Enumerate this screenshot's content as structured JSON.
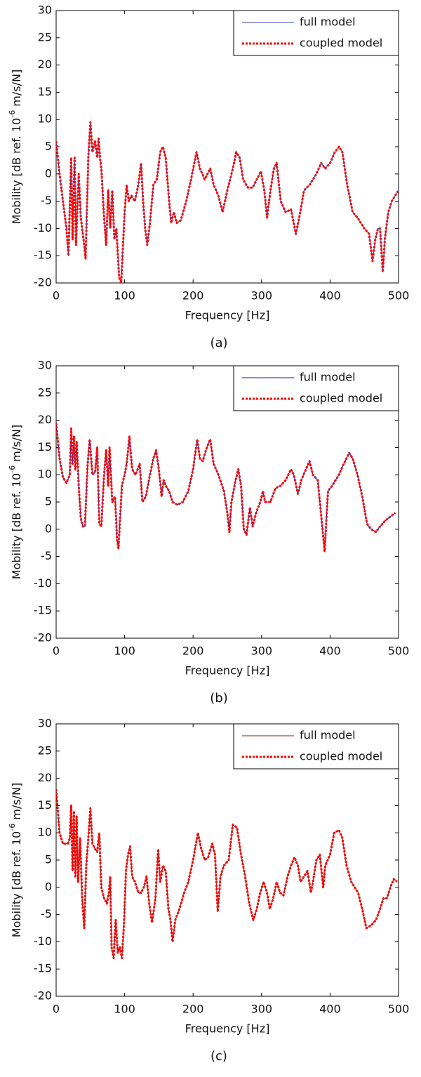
{
  "chart_data": [
    {
      "type": "line",
      "caption": "(a)",
      "xlabel": "Frequency [Hz]",
      "ylabel_parts": [
        "Mobility [dB ref. 10",
        "-6",
        " m/s/N]"
      ],
      "xlim": [
        0,
        500
      ],
      "ylim": [
        -20,
        30
      ],
      "xticks": [
        0,
        100,
        200,
        300,
        400,
        500
      ],
      "yticks": [
        -20,
        -15,
        -10,
        -5,
        0,
        5,
        10,
        15,
        20,
        25,
        30
      ],
      "legend": "upper right",
      "x": [
        0,
        5,
        10,
        15,
        18,
        22,
        24,
        27,
        29,
        33,
        36,
        40,
        43,
        47,
        50,
        53,
        57,
        60,
        62,
        64,
        66,
        70,
        73,
        76,
        79,
        82,
        85,
        88,
        92,
        95,
        100,
        103,
        106,
        110,
        115,
        120,
        124,
        127,
        130,
        133,
        137,
        142,
        147,
        152,
        156,
        160,
        165,
        168,
        172,
        176,
        182,
        190,
        197,
        205,
        210,
        217,
        225,
        230,
        237,
        243,
        250,
        258,
        263,
        268,
        273,
        280,
        287,
        293,
        299,
        304,
        308,
        313,
        318,
        322,
        328,
        335,
        343,
        350,
        355,
        362,
        370,
        380,
        387,
        393,
        400,
        407,
        413,
        418,
        425,
        433,
        440,
        450,
        457,
        462,
        466,
        470,
        473,
        477,
        480,
        485,
        490,
        495,
        500
      ],
      "series": [
        {
          "name": "full model",
          "color": "#3040b0",
          "style": "solid",
          "values": [
            6,
            0,
            -5,
            -10,
            -15,
            3,
            -12,
            3,
            -13,
            0,
            -8,
            -12,
            -15.5,
            3,
            9.5,
            4,
            6,
            3,
            6.5,
            3,
            1,
            -8,
            -13,
            -3,
            -10,
            -3,
            -12,
            -10,
            -19,
            -20,
            -7,
            -2,
            -5,
            -4,
            -5,
            -2,
            2,
            -5,
            -10,
            -13,
            -9,
            -2,
            -1,
            4,
            5,
            3,
            -5,
            -9,
            -7,
            -9,
            -8.5,
            -5,
            -1,
            4,
            1,
            -1,
            1,
            -2,
            -4,
            -7,
            -3,
            1,
            4,
            3,
            -1,
            -2.5,
            -2.5,
            -1,
            0.5,
            -3,
            -8,
            -3,
            1,
            2,
            -5,
            -7,
            -6.5,
            -11,
            -8,
            -3,
            -2,
            0,
            2,
            1,
            2,
            4,
            5,
            4,
            -2,
            -7,
            -8,
            -10,
            -11,
            -16,
            -12,
            -10,
            -10,
            -18,
            -12,
            -7,
            -5,
            -4,
            -3
          ]
        },
        {
          "name": "coupled model",
          "color": "#ff0000",
          "style": "dotted",
          "values": [
            6,
            0,
            -5,
            -10,
            -15,
            3,
            -12,
            3,
            -13,
            0,
            -8,
            -12,
            -15.5,
            3,
            9.5,
            4,
            6,
            3,
            6.5,
            3,
            1,
            -8,
            -13,
            -3,
            -10,
            -3,
            -12,
            -10,
            -19,
            -20,
            -7,
            -2,
            -5,
            -4,
            -5,
            -2,
            2,
            -5,
            -10,
            -13,
            -9,
            -2,
            -1,
            4,
            5,
            3,
            -5,
            -9,
            -7,
            -9,
            -8.5,
            -5,
            -1,
            4,
            1,
            -1,
            1,
            -2,
            -4,
            -7,
            -3,
            1,
            4,
            3,
            -1,
            -2.5,
            -2.5,
            -1,
            0.5,
            -3,
            -8,
            -3,
            1,
            2,
            -5,
            -7,
            -6.5,
            -11,
            -8,
            -3,
            -2,
            0,
            2,
            1,
            2,
            4,
            5,
            4,
            -2,
            -7,
            -8,
            -10,
            -11,
            -16,
            -12,
            -10,
            -10,
            -18,
            -12,
            -7,
            -5,
            -4,
            -3
          ]
        }
      ]
    },
    {
      "type": "line",
      "caption": "(b)",
      "xlabel": "Frequency [Hz]",
      "ylabel_parts": [
        "Mobility [dB ref. 10",
        "-6",
        " m/s/N]"
      ],
      "xlim": [
        0,
        500
      ],
      "ylim": [
        -20,
        30
      ],
      "xticks": [
        0,
        100,
        200,
        300,
        400,
        500
      ],
      "yticks": [
        -20,
        -15,
        -10,
        -5,
        0,
        5,
        10,
        15,
        20,
        25,
        30
      ],
      "legend": "upper right",
      "x": [
        0,
        5,
        10,
        15,
        20,
        22,
        24,
        26,
        28,
        30,
        33,
        36,
        39,
        42,
        46,
        49,
        53,
        57,
        60,
        63,
        66,
        70,
        73,
        76,
        78,
        82,
        86,
        89,
        91,
        96,
        100,
        103,
        107,
        111,
        116,
        122,
        126,
        131,
        137,
        142,
        146,
        150,
        154,
        157,
        160,
        165,
        170,
        177,
        185,
        193,
        200,
        206,
        210,
        214,
        220,
        225,
        230,
        237,
        245,
        250,
        253,
        256,
        262,
        266,
        270,
        274,
        278,
        283,
        287,
        292,
        298,
        302,
        305,
        313,
        320,
        328,
        335,
        343,
        347,
        353,
        358,
        363,
        370,
        375,
        382,
        389,
        392,
        397,
        403,
        408,
        413,
        420,
        428,
        433,
        440,
        447,
        454,
        460,
        467,
        473,
        480,
        490,
        495
      ],
      "series": [
        {
          "name": "full model",
          "color": "#1a1aa0",
          "style": "solid",
          "values": [
            19.5,
            13,
            9.5,
            8.5,
            10,
            18.5,
            12,
            17,
            11,
            16,
            8,
            2,
            0.5,
            0.5,
            12,
            16.5,
            10,
            10.5,
            15,
            1,
            0.5,
            10,
            14.5,
            8,
            15,
            5,
            6,
            -2,
            -3.5,
            8,
            10,
            12,
            17,
            11,
            10,
            12,
            5,
            6,
            10,
            13,
            14.5,
            11,
            6,
            9,
            8,
            7,
            5,
            4.5,
            5,
            7,
            11,
            16.5,
            13,
            12.5,
            15,
            16.5,
            12,
            10,
            7,
            3,
            -0.5,
            5,
            9,
            11,
            8,
            0,
            -1,
            4,
            0.5,
            3,
            5,
            7,
            5,
            5,
            7.5,
            8,
            9,
            11,
            10,
            6.5,
            9,
            10.5,
            12.5,
            10,
            9,
            0,
            -4,
            7,
            8,
            9,
            10,
            12,
            14,
            13,
            10,
            6,
            1,
            0,
            -0.5,
            0.5,
            1.5,
            2.5,
            3
          ]
        },
        {
          "name": "coupled model",
          "color": "#ff0000",
          "style": "dotted",
          "values": [
            19.5,
            13,
            9.5,
            8.5,
            10,
            18.5,
            12,
            17,
            11,
            16,
            8,
            2,
            0.5,
            0.5,
            12,
            16.5,
            10,
            10.5,
            15,
            1,
            0.5,
            10,
            14.5,
            8,
            15,
            5,
            6,
            -2,
            -3.5,
            8,
            10,
            12,
            17,
            11,
            10,
            12,
            5,
            6,
            10,
            13,
            14.5,
            11,
            6,
            9,
            8,
            7,
            5,
            4.5,
            5,
            7,
            11,
            16.5,
            13,
            12.5,
            15,
            16.5,
            12,
            10,
            7,
            3,
            -0.5,
            5,
            9,
            11,
            8,
            0,
            -1,
            4,
            0.5,
            3,
            5,
            7,
            5,
            5,
            7.5,
            8,
            9,
            11,
            10,
            6.5,
            9,
            10.5,
            12.5,
            10,
            9,
            0,
            -4,
            7,
            8,
            9,
            10,
            12,
            14,
            13,
            10,
            6,
            1,
            0,
            -0.5,
            0.5,
            1.5,
            2.5,
            3
          ]
        }
      ]
    },
    {
      "type": "line",
      "caption": "(c)",
      "xlabel": "Frequency [Hz]",
      "ylabel_parts": [
        "Mobility [dB ref. 10",
        "-6",
        " m/s/N]"
      ],
      "xlim": [
        0,
        500
      ],
      "ylim": [
        -20,
        30
      ],
      "xticks": [
        0,
        100,
        200,
        300,
        400,
        500
      ],
      "yticks": [
        -20,
        -15,
        -10,
        -5,
        0,
        5,
        10,
        15,
        20,
        25,
        30
      ],
      "legend": "upper right",
      "x": [
        0,
        5,
        10,
        17,
        20,
        22,
        24,
        26,
        28,
        30,
        32,
        35,
        38,
        41,
        44,
        47,
        50,
        53,
        57,
        60,
        63,
        66,
        70,
        74,
        77,
        79,
        81,
        84,
        87,
        90,
        93,
        96,
        99,
        102,
        105,
        108,
        111,
        115,
        120,
        124,
        128,
        132,
        136,
        140,
        145,
        149,
        152,
        156,
        160,
        164,
        167,
        170,
        174,
        180,
        187,
        193,
        200,
        207,
        212,
        217,
        222,
        228,
        232,
        236,
        240,
        245,
        252,
        258,
        264,
        270,
        276,
        282,
        288,
        293,
        298,
        303,
        308,
        312,
        317,
        322,
        327,
        332,
        338,
        343,
        348,
        353,
        357,
        362,
        367,
        372,
        375,
        380,
        385,
        390,
        393,
        400,
        406,
        413,
        418,
        424,
        431,
        436,
        441,
        447,
        453,
        460,
        467,
        473,
        478,
        483,
        488,
        493,
        498
      ],
      "series": [
        {
          "name": "full model",
          "color": "#8a1a1a",
          "style": "solid",
          "values": [
            18,
            10,
            8,
            8,
            9,
            15,
            3,
            14,
            2,
            13,
            1,
            9,
            -2,
            -7.5,
            4,
            9,
            14.5,
            8,
            7,
            6.5,
            10,
            0,
            -2,
            -3,
            -1,
            2,
            -11,
            -13,
            -6,
            -12,
            -11,
            -13,
            -7,
            3,
            6,
            7.5,
            2,
            1,
            -1,
            -1,
            0,
            2,
            -3,
            -6.5,
            -2,
            7,
            1,
            4,
            3,
            -4,
            -6,
            -10,
            -6,
            -4,
            -1,
            1,
            5,
            10,
            7,
            5,
            5.5,
            8,
            6,
            -4.5,
            2,
            4,
            5,
            11.5,
            11,
            6,
            2,
            -3,
            -6,
            -4,
            -1,
            1,
            -1,
            -4,
            -2,
            1,
            -1,
            -1.5,
            2,
            4,
            5.5,
            4,
            1,
            2,
            3,
            -1,
            1,
            5,
            6,
            0,
            4,
            6,
            10,
            10.5,
            9,
            4,
            1,
            0,
            -1,
            -4,
            -7.5,
            -7,
            -6,
            -4,
            -2,
            -2,
            0,
            1.5,
            1
          ]
        },
        {
          "name": "coupled model",
          "color": "#ff0000",
          "style": "dotted",
          "values": [
            18,
            10,
            8,
            8,
            9,
            15,
            3,
            14,
            2,
            13,
            1,
            9,
            -2,
            -7.5,
            4,
            9,
            14.5,
            8,
            7,
            6.5,
            10,
            0,
            -2,
            -3,
            -1,
            2,
            -11,
            -13,
            -6,
            -12,
            -11,
            -13,
            -7,
            3,
            6,
            7.5,
            2,
            1,
            -1,
            -1,
            0,
            2,
            -3,
            -6.5,
            -2,
            7,
            1,
            4,
            3,
            -4,
            -6,
            -10,
            -6,
            -4,
            -1,
            1,
            5,
            10,
            7,
            5,
            5.5,
            8,
            6,
            -4.5,
            2,
            4,
            5,
            11.5,
            11,
            6,
            2,
            -3,
            -6,
            -4,
            -1,
            1,
            -1,
            -4,
            -2,
            1,
            -1,
            -1.5,
            2,
            4,
            5.5,
            4,
            1,
            2,
            3,
            -1,
            1,
            5,
            6,
            0,
            4,
            6,
            10,
            10.5,
            9,
            4,
            1,
            0,
            -1,
            -4,
            -7.5,
            -7,
            -6,
            -4,
            -2,
            -2,
            0,
            1.5,
            1
          ]
        }
      ]
    }
  ]
}
